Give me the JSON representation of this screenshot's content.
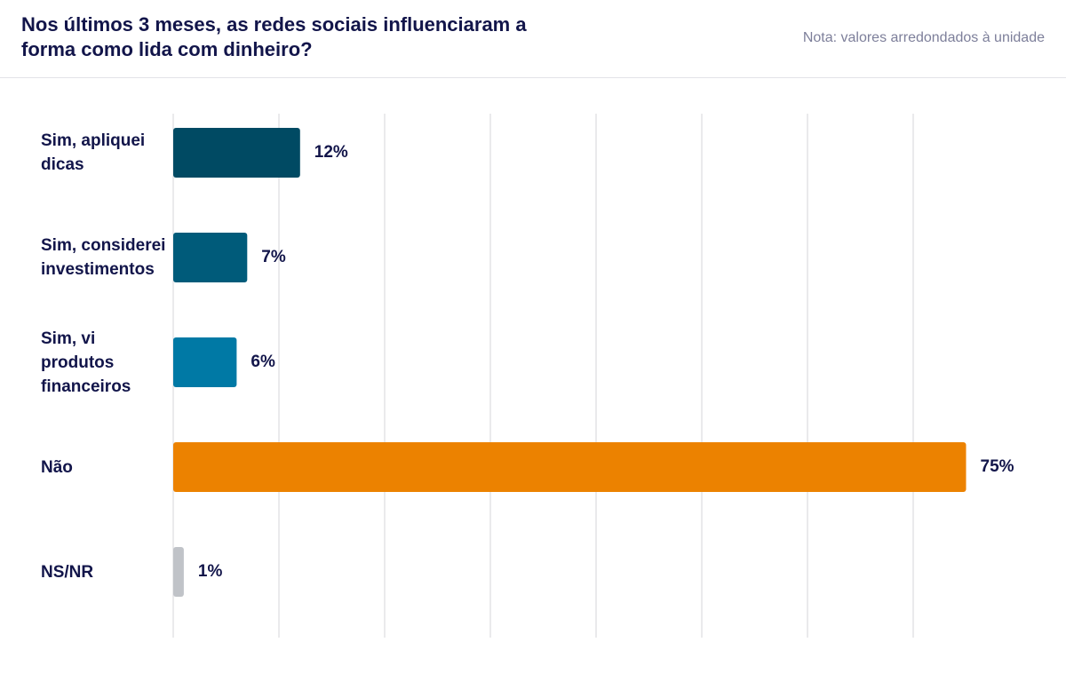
{
  "chart_data": {
    "type": "bar",
    "orientation": "horizontal",
    "title": "Nos últimos 3 meses, as redes sociais influenciaram a forma como lida com dinheiro?",
    "note": "Nota: valores arredondados à unidade",
    "categories": [
      "Sim, apliquei dicas",
      "Sim, considerei investimentos",
      "Sim, vi produtos financeiros",
      "Não",
      "NS/NR"
    ],
    "values": [
      12,
      7,
      6,
      75,
      1
    ],
    "value_labels": [
      "12%",
      "7%",
      "6%",
      "75%",
      "1%"
    ],
    "colors": [
      "#004a63",
      "#005b7a",
      "#0079a5",
      "#ec8200",
      "#c0c3c8"
    ],
    "xlim": [
      0,
      80
    ],
    "xticks": [
      0,
      10,
      20,
      30,
      40,
      50,
      60,
      70
    ],
    "grid": true
  }
}
